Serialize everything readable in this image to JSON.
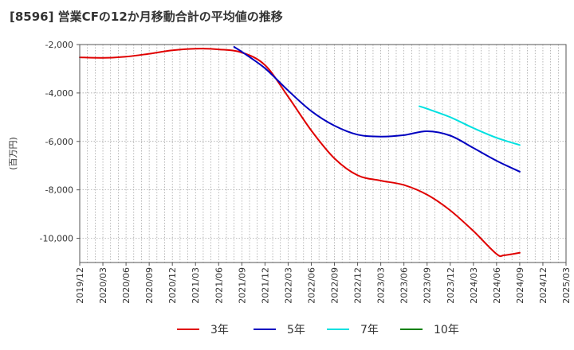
{
  "chart_data": {
    "type": "line",
    "title": "[8596]  営業CFの12か月移動合計の平均値の推移",
    "ylabel": "(百万円)",
    "xlabel": "",
    "ylim": [
      -11000,
      -2000
    ],
    "y_ticks": [
      -2000,
      -4000,
      -6000,
      -8000,
      -10000
    ],
    "y_tick_labels": [
      "-2,000",
      "-4,000",
      "-6,000",
      "-8,000",
      "-10,000"
    ],
    "x_tick_labels": [
      "2019/12",
      "2020/03",
      "2020/06",
      "2020/09",
      "2020/12",
      "2021/03",
      "2021/06",
      "2021/09",
      "2021/12",
      "2022/03",
      "2022/06",
      "2022/09",
      "2022/12",
      "2023/03",
      "2023/06",
      "2023/09",
      "2023/12",
      "2024/03",
      "2024/06",
      "2024/09",
      "2024/12",
      "2025/03"
    ],
    "grid": true,
    "legend_position": "bottom",
    "series": [
      {
        "name": "3年",
        "color": "#e00000",
        "values": [
          [
            "2019/12",
            -2530
          ],
          [
            "2020/03",
            -2550
          ],
          [
            "2020/06",
            -2500
          ],
          [
            "2020/09",
            -2380
          ],
          [
            "2020/12",
            -2240
          ],
          [
            "2021/03",
            -2170
          ],
          [
            "2021/06",
            -2200
          ],
          [
            "2021/09",
            -2330
          ],
          [
            "2021/12",
            -2850
          ],
          [
            "2022/03",
            -4150
          ],
          [
            "2022/06",
            -5550
          ],
          [
            "2022/09",
            -6700
          ],
          [
            "2022/12",
            -7400
          ],
          [
            "2023/03",
            -7620
          ],
          [
            "2023/06",
            -7800
          ],
          [
            "2023/09",
            -8200
          ],
          [
            "2023/12",
            -8850
          ],
          [
            "2024/03",
            -9700
          ],
          [
            "2024/06",
            -10650
          ],
          [
            "2024/07",
            -10700
          ],
          [
            "2024/09",
            -10600
          ]
        ]
      },
      {
        "name": "5年",
        "color": "#0000c0",
        "values": [
          [
            "2021/08",
            -2100
          ],
          [
            "2021/09",
            -2300
          ],
          [
            "2021/12",
            -2980
          ],
          [
            "2022/03",
            -3900
          ],
          [
            "2022/06",
            -4750
          ],
          [
            "2022/09",
            -5350
          ],
          [
            "2022/12",
            -5720
          ],
          [
            "2023/03",
            -5800
          ],
          [
            "2023/06",
            -5740
          ],
          [
            "2023/09",
            -5580
          ],
          [
            "2023/12",
            -5760
          ],
          [
            "2024/03",
            -6270
          ],
          [
            "2024/06",
            -6800
          ],
          [
            "2024/09",
            -7250
          ]
        ]
      },
      {
        "name": "7年",
        "color": "#00e0e0",
        "values": [
          [
            "2023/08",
            -4550
          ],
          [
            "2023/09",
            -4650
          ],
          [
            "2023/12",
            -5000
          ],
          [
            "2024/03",
            -5450
          ],
          [
            "2024/06",
            -5850
          ],
          [
            "2024/09",
            -6150
          ]
        ]
      },
      {
        "name": "10年",
        "color": "#008000",
        "values": []
      }
    ]
  }
}
